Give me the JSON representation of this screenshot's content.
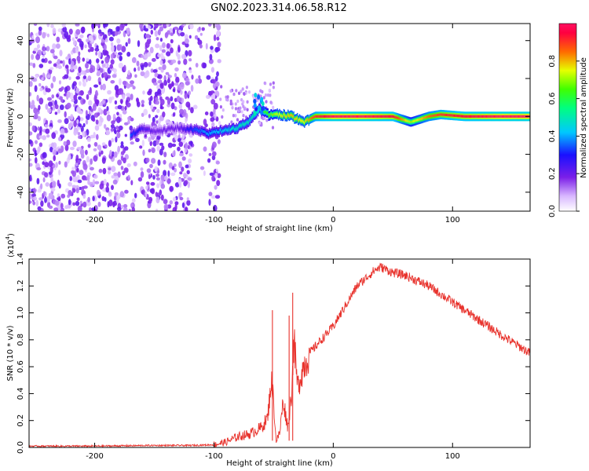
{
  "title": "GN02.2023.314.06.58.R12",
  "colorbar": {
    "label": "Normalized spectral amplitude",
    "ticks": [
      "0.0",
      "0.2",
      "0.4",
      "0.6",
      "0.8"
    ],
    "tick_values": [
      0.0,
      0.2,
      0.4,
      0.6,
      0.8
    ],
    "range": [
      0,
      1
    ]
  },
  "chart_data": [
    {
      "type": "heatmap",
      "xlabel": "Height of straight line (km)",
      "ylabel": "Frequency (Hz)",
      "xlim": [
        -255,
        165
      ],
      "ylim": [
        -50,
        49
      ],
      "xticks": [
        -200,
        -100,
        0,
        100
      ],
      "xtick_labels": [
        "-200",
        "-100",
        "0",
        "100"
      ],
      "yticks": [
        -40,
        -20,
        0,
        20,
        40
      ],
      "ytick_labels": [
        "-40",
        "-20",
        "0",
        "20",
        "40"
      ],
      "signal_trace": [
        {
          "x": -170,
          "y": -10,
          "a": 0.35
        },
        {
          "x": -160,
          "y": -6,
          "a": 0.25
        },
        {
          "x": -150,
          "y": -8,
          "a": 0.2
        },
        {
          "x": -130,
          "y": -6,
          "a": 0.2
        },
        {
          "x": -115,
          "y": -7,
          "a": 0.35
        },
        {
          "x": -105,
          "y": -9,
          "a": 0.4
        },
        {
          "x": -90,
          "y": -7,
          "a": 0.45
        },
        {
          "x": -80,
          "y": -6,
          "a": 0.5
        },
        {
          "x": -70,
          "y": -2,
          "a": 0.5
        },
        {
          "x": -62,
          "y": 4,
          "a": 0.55
        },
        {
          "x": -55,
          "y": 1,
          "a": 0.65
        },
        {
          "x": -45,
          "y": 1,
          "a": 0.75
        },
        {
          "x": -35,
          "y": 0,
          "a": 0.8
        },
        {
          "x": -25,
          "y": -3,
          "a": 0.75
        },
        {
          "x": -15,
          "y": 0,
          "a": 0.9
        },
        {
          "x": 0,
          "y": 0,
          "a": 1.0
        },
        {
          "x": 25,
          "y": 0,
          "a": 1.0
        },
        {
          "x": 50,
          "y": 0,
          "a": 0.95
        },
        {
          "x": 65,
          "y": -3,
          "a": 0.7
        },
        {
          "x": 80,
          "y": 0,
          "a": 0.85
        },
        {
          "x": 90,
          "y": 1,
          "a": 0.9
        },
        {
          "x": 110,
          "y": 0,
          "a": 0.95
        },
        {
          "x": 140,
          "y": 0,
          "a": 1.0
        },
        {
          "x": 165,
          "y": 0,
          "a": 1.0
        }
      ]
    },
    {
      "type": "line",
      "xlabel": "Height of straight line (km)",
      "ylabel": "SNR (10 * v/v)",
      "y_multiplier": "(x10",
      "y_exponent": "4",
      "xlim": [
        -255,
        165
      ],
      "ylim": [
        0,
        1.4
      ],
      "xticks": [
        -200,
        -100,
        0,
        100
      ],
      "xtick_labels": [
        "-200",
        "-100",
        "0",
        "100"
      ],
      "yticks": [
        0,
        0.2,
        0.4,
        0.6,
        0.8,
        1.0,
        1.2,
        1.4
      ],
      "ytick_labels": [
        "0.0",
        "0.2",
        "0.4",
        "0.6",
        "0.8",
        "1.0",
        "1.2",
        "1.4"
      ],
      "series": [
        {
          "color": "#e8322c",
          "x": [
            -255,
            -200,
            -150,
            -120,
            -100,
            -90,
            -80,
            -70,
            -60,
            -55,
            -52,
            -50,
            -48,
            -45,
            -42,
            -38,
            -35,
            -33,
            -30,
            -25,
            -20,
            -10,
            0,
            10,
            20,
            30,
            35,
            40,
            50,
            60,
            70,
            80,
            100,
            120,
            140,
            165
          ],
          "y": [
            0.01,
            0.01,
            0.015,
            0.015,
            0.02,
            0.04,
            0.08,
            0.1,
            0.15,
            0.22,
            0.5,
            0.35,
            0.05,
            0.1,
            0.35,
            0.15,
            0.4,
            0.8,
            0.45,
            0.6,
            0.7,
            0.8,
            0.9,
            1.05,
            1.2,
            1.28,
            1.32,
            1.34,
            1.3,
            1.28,
            1.24,
            1.2,
            1.08,
            0.96,
            0.84,
            0.7
          ]
        }
      ],
      "spikes": [
        {
          "x": -51,
          "y": 1.02
        },
        {
          "x": -34,
          "y": 1.15
        },
        {
          "x": -37,
          "y": 0.98
        }
      ]
    }
  ]
}
